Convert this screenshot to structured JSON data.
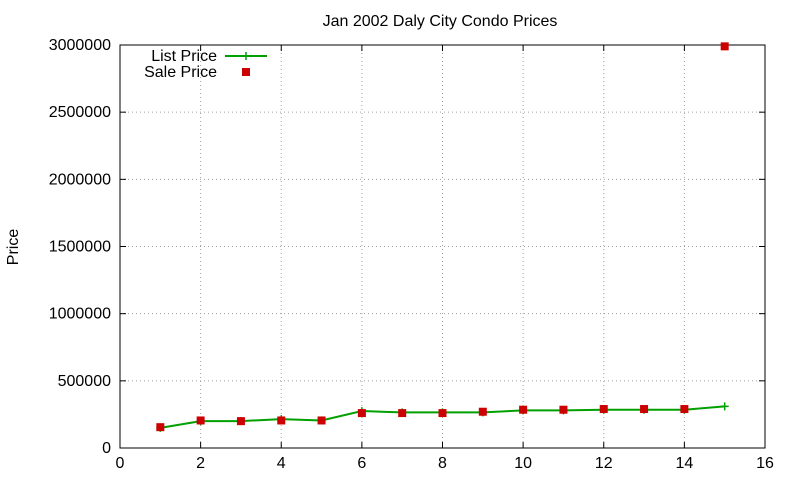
{
  "chart_data": {
    "type": "line",
    "title": "Jan 2002 Daly City Condo Prices",
    "xlabel": "",
    "ylabel": "Price",
    "xlim": [
      0,
      16
    ],
    "ylim": [
      0,
      3000000
    ],
    "xticks": [
      0,
      2,
      4,
      6,
      8,
      10,
      12,
      14,
      16
    ],
    "yticks": [
      0,
      500000,
      1000000,
      1500000,
      2000000,
      2500000,
      3000000
    ],
    "grid": true,
    "legend_position": "top-left",
    "series": [
      {
        "name": "List Price",
        "style": "line+cross",
        "color": "#00a000",
        "x": [
          1,
          2,
          3,
          4,
          5,
          6,
          7,
          8,
          9,
          10,
          11,
          12,
          13,
          14,
          15
        ],
        "values": [
          150000,
          200000,
          200000,
          215000,
          205000,
          275000,
          265000,
          265000,
          265000,
          280000,
          280000,
          285000,
          285000,
          285000,
          310000
        ]
      },
      {
        "name": "Sale Price",
        "style": "square",
        "color": "#cc0000",
        "x": [
          1,
          2,
          3,
          4,
          5,
          6,
          7,
          8,
          9,
          10,
          11,
          12,
          13,
          14,
          15
        ],
        "values": [
          155000,
          205000,
          200000,
          205000,
          205000,
          260000,
          260000,
          260000,
          270000,
          285000,
          285000,
          290000,
          290000,
          290000,
          2990000
        ]
      }
    ]
  }
}
